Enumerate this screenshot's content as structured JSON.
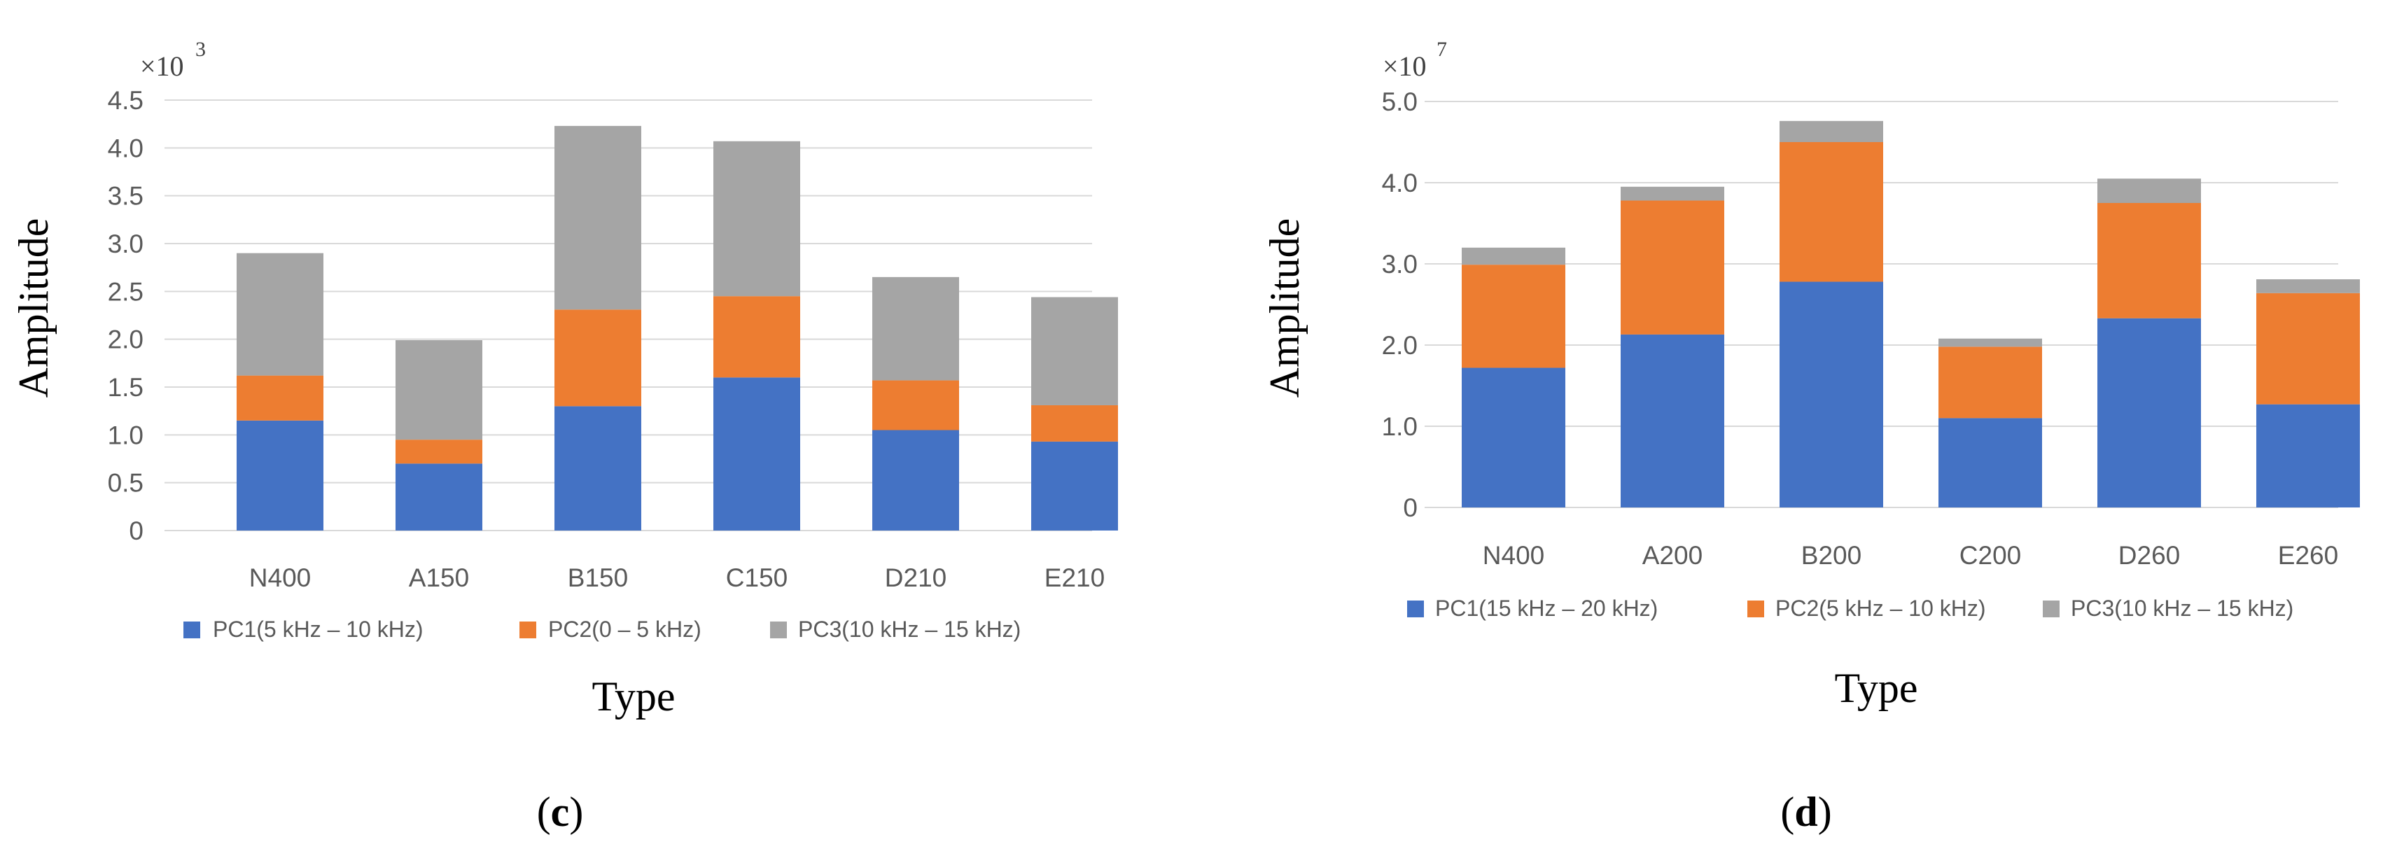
{
  "chart_data": [
    {
      "type": "bar",
      "stacked": true,
      "panel_label": "c",
      "exponent_label": "×10",
      "exponent_power": "3",
      "categories": [
        "N400",
        "A150",
        "B150",
        "C150",
        "D210",
        "E210"
      ],
      "series": [
        {
          "name": "PC1(5 kHz – 10 kHz)",
          "color": "#4472c4",
          "values": [
            1.15,
            0.7,
            1.3,
            1.6,
            1.05,
            0.93
          ]
        },
        {
          "name": "PC2(0 – 5 kHz)",
          "color": "#ed7d31",
          "values": [
            0.47,
            0.25,
            1.01,
            0.85,
            0.52,
            0.38
          ]
        },
        {
          "name": "PC3(10 kHz – 15 kHz)",
          "color": "#a5a5a5",
          "values": [
            1.28,
            1.04,
            1.92,
            1.62,
            1.08,
            1.13
          ]
        }
      ],
      "xlabel": "Type",
      "ylabel": "Amplitude",
      "ylim": [
        0,
        4.5
      ],
      "yticks": [
        "0",
        "0.5",
        "1.0",
        "1.5",
        "2.0",
        "2.5",
        "3.0",
        "3.5",
        "4.0",
        "4.5"
      ],
      "legend": "bottom"
    },
    {
      "type": "bar",
      "stacked": true,
      "panel_label": "d",
      "exponent_label": "×10",
      "exponent_power": "7",
      "categories": [
        "N400",
        "A200",
        "B200",
        "C200",
        "D260",
        "E260"
      ],
      "series": [
        {
          "name": "PC1(15 kHz – 20 kHz)",
          "color": "#4472c4",
          "values": [
            1.72,
            2.13,
            2.78,
            1.1,
            2.33,
            1.27
          ]
        },
        {
          "name": "PC2(5 kHz – 10 kHz)",
          "color": "#ed7d31",
          "values": [
            1.27,
            1.65,
            1.72,
            0.88,
            1.42,
            1.37
          ]
        },
        {
          "name": "PC3(10 kHz – 15 kHz)",
          "color": "#a5a5a5",
          "values": [
            0.21,
            0.17,
            0.26,
            0.1,
            0.3,
            0.17
          ]
        }
      ],
      "xlabel": "Type",
      "ylabel": "Amplitude",
      "ylim": [
        0,
        5.0
      ],
      "yticks": [
        "0",
        "1.0",
        "2.0",
        "3.0",
        "4.0",
        "5.0"
      ],
      "legend": "bottom"
    }
  ]
}
